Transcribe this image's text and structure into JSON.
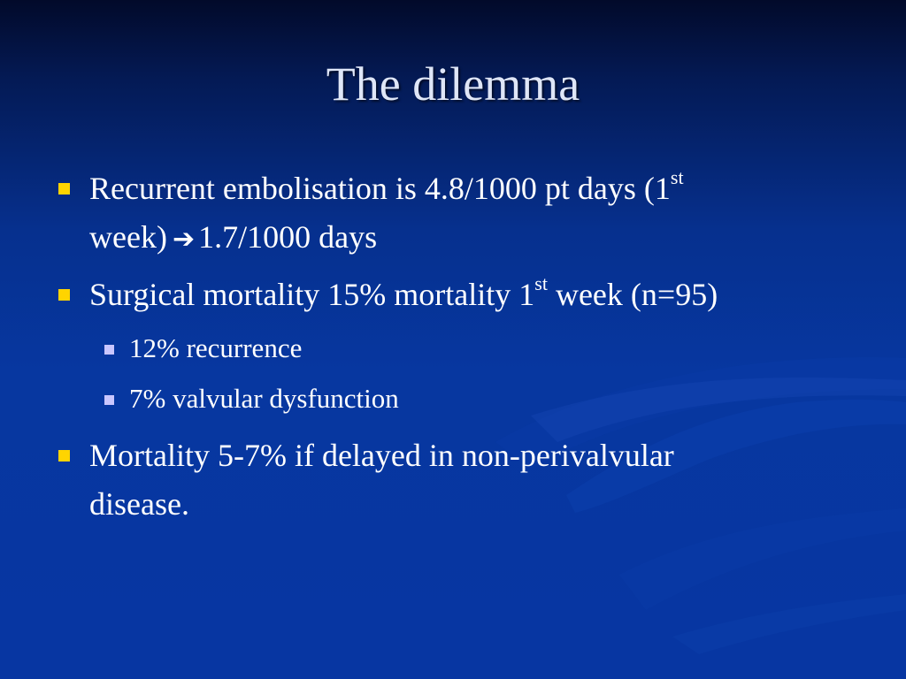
{
  "slide": {
    "title": "The dilemma",
    "bullets": [
      {
        "line1_a": "Recurrent embolisation is 4.8/1000 pt days (1",
        "line1_sup": "st",
        "line2_a": "week)",
        "arrow_icon": "right-arrow-icon",
        "line2_b": "1.7/1000 days"
      },
      {
        "text_a": "Surgical mortality 15% mortality 1",
        "text_sup": "st",
        "text_b": " week (n=95)",
        "subbullets": [
          {
            "text": "12% recurrence"
          },
          {
            "text": "7% valvular dysfunction"
          }
        ]
      },
      {
        "line1": "Mortality 5-7% if delayed in non-perivalvular",
        "line2": "disease."
      }
    ]
  },
  "colors": {
    "bullet_primary": "#ffd400",
    "bullet_secondary": "#c9c6ff",
    "title_text": "#dfe6f7",
    "background": "#0737a0"
  }
}
